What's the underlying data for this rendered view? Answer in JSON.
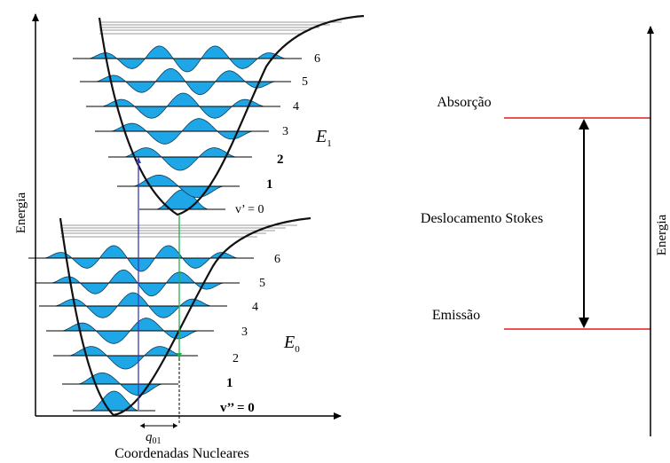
{
  "left_diagram": {
    "y_axis_label": "Energia",
    "x_axis_label": "Coordenadas Nucleares",
    "upper_state": {
      "name_letter": "E",
      "name_sub": "1",
      "levels": [
        "v’ = 0",
        "1",
        "2",
        "3",
        "4",
        "5",
        "6"
      ]
    },
    "lower_state": {
      "name_letter": "E",
      "name_sub": "0",
      "levels": [
        "v’’ = 0",
        "1",
        "2",
        "3",
        "4",
        "5",
        "6"
      ]
    },
    "displacement": {
      "letter": "q",
      "sub": "01"
    }
  },
  "right_diagram": {
    "absorption_label": "Absorção",
    "emission_label": "Emissão",
    "shift_label": "Deslocamento Stokes",
    "y_axis_label": "Energia"
  },
  "colors": {
    "wavefunction_fill": "#1ea6e6",
    "absorption_arrow": "#3b3bb8",
    "emission_arrow": "#22b14c",
    "level_line": "#e01b1b",
    "axis": "#000000"
  }
}
